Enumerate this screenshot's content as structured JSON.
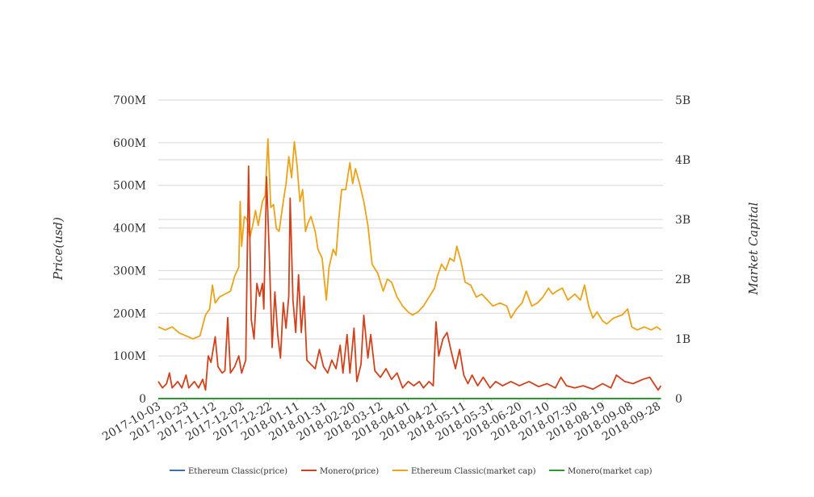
{
  "chart_data": {
    "type": "line",
    "title": "",
    "xlabel": "",
    "ylabel_left": "Price(usd)",
    "ylabel_right": "Market Capital",
    "x_ticks": [
      "2017-10-03",
      "2017-10-23",
      "2017-11-12",
      "2017-12-02",
      "2017-12-22",
      "2018-01-11",
      "2018-01-31",
      "2018-02-20",
      "2018-03-12",
      "2018-04-01",
      "2018-04-21",
      "2018-05-11",
      "2018-05-31",
      "2018-06-20",
      "2018-07-10",
      "2018-07-30",
      "2018-08-19",
      "2018-09-08",
      "2018-09-28"
    ],
    "x_range": [
      "2017-10-03",
      "2018-09-30"
    ],
    "y_left": {
      "range": [
        0,
        700000000
      ],
      "ticks": [
        0,
        100000000,
        200000000,
        300000000,
        400000000,
        500000000,
        600000000,
        700000000
      ],
      "tick_labels": [
        "0",
        "100M",
        "200M",
        "300M",
        "400M",
        "500M",
        "600M",
        "700M"
      ]
    },
    "y_right": {
      "range": [
        0,
        5000000000
      ],
      "ticks": [
        0,
        1000000000,
        2000000000,
        3000000000,
        4000000000,
        5000000000
      ],
      "tick_labels": [
        "0",
        "1B",
        "2B",
        "3B",
        "4B",
        "5B"
      ]
    },
    "grid": true,
    "legend_position": "bottom",
    "series": [
      {
        "name": "Ethereum Classic(price)",
        "axis": "left",
        "color": "#3b6fb6",
        "points": [
          [
            "2017-10-03",
            15
          ],
          [
            "2018-09-30",
            12
          ]
        ]
      },
      {
        "name": "Monero(price)",
        "axis": "left",
        "color": "#d1421c",
        "points": [
          [
            "2017-10-03",
            40000000
          ],
          [
            "2017-10-06",
            25000000
          ],
          [
            "2017-10-09",
            35000000
          ],
          [
            "2017-10-11",
            60000000
          ],
          [
            "2017-10-13",
            25000000
          ],
          [
            "2017-10-17",
            40000000
          ],
          [
            "2017-10-20",
            25000000
          ],
          [
            "2017-10-23",
            55000000
          ],
          [
            "2017-10-25",
            25000000
          ],
          [
            "2017-10-29",
            40000000
          ],
          [
            "2017-11-01",
            25000000
          ],
          [
            "2017-11-04",
            45000000
          ],
          [
            "2017-11-06",
            20000000
          ],
          [
            "2017-11-08",
            100000000
          ],
          [
            "2017-11-10",
            85000000
          ],
          [
            "2017-11-13",
            145000000
          ],
          [
            "2017-11-15",
            75000000
          ],
          [
            "2017-11-18",
            60000000
          ],
          [
            "2017-11-20",
            65000000
          ],
          [
            "2017-11-22",
            190000000
          ],
          [
            "2017-11-24",
            60000000
          ],
          [
            "2017-11-27",
            75000000
          ],
          [
            "2017-11-30",
            100000000
          ],
          [
            "2017-12-02",
            60000000
          ],
          [
            "2017-12-05",
            90000000
          ],
          [
            "2017-12-07",
            545000000
          ],
          [
            "2017-12-09",
            185000000
          ],
          [
            "2017-12-11",
            140000000
          ],
          [
            "2017-12-13",
            270000000
          ],
          [
            "2017-12-15",
            240000000
          ],
          [
            "2017-12-17",
            270000000
          ],
          [
            "2017-12-18",
            210000000
          ],
          [
            "2017-12-20",
            520000000
          ],
          [
            "2017-12-22",
            330000000
          ],
          [
            "2017-12-24",
            120000000
          ],
          [
            "2017-12-26",
            250000000
          ],
          [
            "2017-12-28",
            150000000
          ],
          [
            "2017-12-30",
            95000000
          ],
          [
            "2018-01-01",
            225000000
          ],
          [
            "2018-01-03",
            165000000
          ],
          [
            "2018-01-05",
            240000000
          ],
          [
            "2018-01-06",
            470000000
          ],
          [
            "2018-01-08",
            230000000
          ],
          [
            "2018-01-10",
            155000000
          ],
          [
            "2018-01-12",
            290000000
          ],
          [
            "2018-01-14",
            155000000
          ],
          [
            "2018-01-16",
            240000000
          ],
          [
            "2018-01-18",
            90000000
          ],
          [
            "2018-01-21",
            80000000
          ],
          [
            "2018-01-24",
            70000000
          ],
          [
            "2018-01-27",
            115000000
          ],
          [
            "2018-01-30",
            75000000
          ],
          [
            "2018-02-02",
            60000000
          ],
          [
            "2018-02-05",
            90000000
          ],
          [
            "2018-02-08",
            70000000
          ],
          [
            "2018-02-11",
            125000000
          ],
          [
            "2018-02-13",
            60000000
          ],
          [
            "2018-02-16",
            150000000
          ],
          [
            "2018-02-18",
            60000000
          ],
          [
            "2018-02-21",
            165000000
          ],
          [
            "2018-02-23",
            40000000
          ],
          [
            "2018-02-26",
            80000000
          ],
          [
            "2018-02-28",
            195000000
          ],
          [
            "2018-03-03",
            95000000
          ],
          [
            "2018-03-05",
            150000000
          ],
          [
            "2018-03-08",
            65000000
          ],
          [
            "2018-03-12",
            50000000
          ],
          [
            "2018-03-16",
            70000000
          ],
          [
            "2018-03-20",
            45000000
          ],
          [
            "2018-03-24",
            60000000
          ],
          [
            "2018-03-28",
            25000000
          ],
          [
            "2018-04-01",
            40000000
          ],
          [
            "2018-04-05",
            30000000
          ],
          [
            "2018-04-09",
            40000000
          ],
          [
            "2018-04-12",
            25000000
          ],
          [
            "2018-04-16",
            40000000
          ],
          [
            "2018-04-19",
            30000000
          ],
          [
            "2018-04-21",
            180000000
          ],
          [
            "2018-04-23",
            100000000
          ],
          [
            "2018-04-26",
            140000000
          ],
          [
            "2018-04-29",
            155000000
          ],
          [
            "2018-05-02",
            110000000
          ],
          [
            "2018-05-05",
            70000000
          ],
          [
            "2018-05-08",
            115000000
          ],
          [
            "2018-05-11",
            55000000
          ],
          [
            "2018-05-14",
            35000000
          ],
          [
            "2018-05-17",
            55000000
          ],
          [
            "2018-05-21",
            30000000
          ],
          [
            "2018-05-25",
            50000000
          ],
          [
            "2018-05-30",
            25000000
          ],
          [
            "2018-06-03",
            40000000
          ],
          [
            "2018-06-08",
            30000000
          ],
          [
            "2018-06-14",
            40000000
          ],
          [
            "2018-06-20",
            30000000
          ],
          [
            "2018-06-27",
            40000000
          ],
          [
            "2018-07-04",
            28000000
          ],
          [
            "2018-07-10",
            35000000
          ],
          [
            "2018-07-16",
            25000000
          ],
          [
            "2018-07-20",
            50000000
          ],
          [
            "2018-07-24",
            30000000
          ],
          [
            "2018-07-30",
            25000000
          ],
          [
            "2018-08-05",
            30000000
          ],
          [
            "2018-08-12",
            22000000
          ],
          [
            "2018-08-19",
            35000000
          ],
          [
            "2018-08-25",
            25000000
          ],
          [
            "2018-08-29",
            55000000
          ],
          [
            "2018-09-04",
            40000000
          ],
          [
            "2018-09-10",
            35000000
          ],
          [
            "2018-09-17",
            45000000
          ],
          [
            "2018-09-22",
            50000000
          ],
          [
            "2018-09-25",
            35000000
          ],
          [
            "2018-09-28",
            20000000
          ],
          [
            "2018-09-30",
            30000000
          ]
        ]
      },
      {
        "name": "Ethereum Classic(market cap)",
        "axis": "right",
        "color": "#eba319",
        "points": [
          [
            "2017-10-03",
            1200000000
          ],
          [
            "2017-10-08",
            1150000000
          ],
          [
            "2017-10-13",
            1200000000
          ],
          [
            "2017-10-18",
            1100000000
          ],
          [
            "2017-10-23",
            1050000000
          ],
          [
            "2017-10-28",
            1000000000
          ],
          [
            "2017-11-02",
            1050000000
          ],
          [
            "2017-11-06",
            1400000000
          ],
          [
            "2017-11-09",
            1500000000
          ],
          [
            "2017-11-11",
            1900000000
          ],
          [
            "2017-11-13",
            1600000000
          ],
          [
            "2017-11-16",
            1700000000
          ],
          [
            "2017-11-20",
            1750000000
          ],
          [
            "2017-11-24",
            1800000000
          ],
          [
            "2017-11-27",
            2050000000
          ],
          [
            "2017-11-30",
            2200000000
          ],
          [
            "2017-12-01",
            3300000000
          ],
          [
            "2017-12-02",
            2550000000
          ],
          [
            "2017-12-04",
            3050000000
          ],
          [
            "2017-12-06",
            3000000000
          ],
          [
            "2017-12-08",
            2700000000
          ],
          [
            "2017-12-10",
            2900000000
          ],
          [
            "2017-12-12",
            3150000000
          ],
          [
            "2017-12-14",
            2900000000
          ],
          [
            "2017-12-17",
            3300000000
          ],
          [
            "2017-12-19",
            3400000000
          ],
          [
            "2017-12-21",
            4350000000
          ],
          [
            "2017-12-23",
            3200000000
          ],
          [
            "2017-12-25",
            3250000000
          ],
          [
            "2017-12-27",
            2850000000
          ],
          [
            "2017-12-29",
            2800000000
          ],
          [
            "2018-01-01",
            3300000000
          ],
          [
            "2018-01-03",
            3600000000
          ],
          [
            "2018-01-05",
            4050000000
          ],
          [
            "2018-01-07",
            3700000000
          ],
          [
            "2018-01-09",
            4300000000
          ],
          [
            "2018-01-11",
            3900000000
          ],
          [
            "2018-01-13",
            3300000000
          ],
          [
            "2018-01-15",
            3500000000
          ],
          [
            "2018-01-17",
            2800000000
          ],
          [
            "2018-01-19",
            2950000000
          ],
          [
            "2018-01-21",
            3050000000
          ],
          [
            "2018-01-24",
            2800000000
          ],
          [
            "2018-01-26",
            2500000000
          ],
          [
            "2018-01-29",
            2350000000
          ],
          [
            "2018-02-01",
            1650000000
          ],
          [
            "2018-02-03",
            2200000000
          ],
          [
            "2018-02-06",
            2500000000
          ],
          [
            "2018-02-08",
            2400000000
          ],
          [
            "2018-02-10",
            3000000000
          ],
          [
            "2018-02-12",
            3500000000
          ],
          [
            "2018-02-15",
            3500000000
          ],
          [
            "2018-02-18",
            3950000000
          ],
          [
            "2018-02-20",
            3600000000
          ],
          [
            "2018-02-22",
            3850000000
          ],
          [
            "2018-02-25",
            3600000000
          ],
          [
            "2018-02-28",
            3300000000
          ],
          [
            "2018-03-03",
            2900000000
          ],
          [
            "2018-03-06",
            2250000000
          ],
          [
            "2018-03-10",
            2100000000
          ],
          [
            "2018-03-14",
            1800000000
          ],
          [
            "2018-03-17",
            2000000000
          ],
          [
            "2018-03-20",
            1950000000
          ],
          [
            "2018-03-24",
            1700000000
          ],
          [
            "2018-03-28",
            1550000000
          ],
          [
            "2018-04-01",
            1450000000
          ],
          [
            "2018-04-04",
            1400000000
          ],
          [
            "2018-04-08",
            1450000000
          ],
          [
            "2018-04-12",
            1550000000
          ],
          [
            "2018-04-16",
            1700000000
          ],
          [
            "2018-04-20",
            1850000000
          ],
          [
            "2018-04-22",
            2050000000
          ],
          [
            "2018-04-25",
            2250000000
          ],
          [
            "2018-04-28",
            2150000000
          ],
          [
            "2018-05-01",
            2350000000
          ],
          [
            "2018-05-04",
            2300000000
          ],
          [
            "2018-05-06",
            2550000000
          ],
          [
            "2018-05-09",
            2300000000
          ],
          [
            "2018-05-12",
            1950000000
          ],
          [
            "2018-05-16",
            1900000000
          ],
          [
            "2018-05-20",
            1700000000
          ],
          [
            "2018-05-24",
            1750000000
          ],
          [
            "2018-05-28",
            1650000000
          ],
          [
            "2018-06-01",
            1550000000
          ],
          [
            "2018-06-06",
            1600000000
          ],
          [
            "2018-06-11",
            1550000000
          ],
          [
            "2018-06-14",
            1350000000
          ],
          [
            "2018-06-18",
            1500000000
          ],
          [
            "2018-06-22",
            1600000000
          ],
          [
            "2018-06-25",
            1800000000
          ],
          [
            "2018-06-29",
            1550000000
          ],
          [
            "2018-07-03",
            1600000000
          ],
          [
            "2018-07-07",
            1700000000
          ],
          [
            "2018-07-11",
            1850000000
          ],
          [
            "2018-07-14",
            1750000000
          ],
          [
            "2018-07-17",
            1800000000
          ],
          [
            "2018-07-21",
            1850000000
          ],
          [
            "2018-07-25",
            1650000000
          ],
          [
            "2018-07-30",
            1750000000
          ],
          [
            "2018-08-03",
            1650000000
          ],
          [
            "2018-08-06",
            1900000000
          ],
          [
            "2018-08-09",
            1550000000
          ],
          [
            "2018-08-12",
            1350000000
          ],
          [
            "2018-08-15",
            1450000000
          ],
          [
            "2018-08-19",
            1300000000
          ],
          [
            "2018-08-22",
            1250000000
          ],
          [
            "2018-08-27",
            1350000000
          ],
          [
            "2018-09-02",
            1400000000
          ],
          [
            "2018-09-06",
            1500000000
          ],
          [
            "2018-09-09",
            1200000000
          ],
          [
            "2018-09-13",
            1150000000
          ],
          [
            "2018-09-18",
            1200000000
          ],
          [
            "2018-09-23",
            1150000000
          ],
          [
            "2018-09-27",
            1200000000
          ],
          [
            "2018-09-30",
            1150000000
          ]
        ]
      },
      {
        "name": "Monero(market cap)",
        "axis": "right",
        "color": "#2a9a2a",
        "points": [
          [
            "2017-10-03",
            50
          ],
          [
            "2018-09-30",
            40
          ]
        ]
      }
    ]
  }
}
